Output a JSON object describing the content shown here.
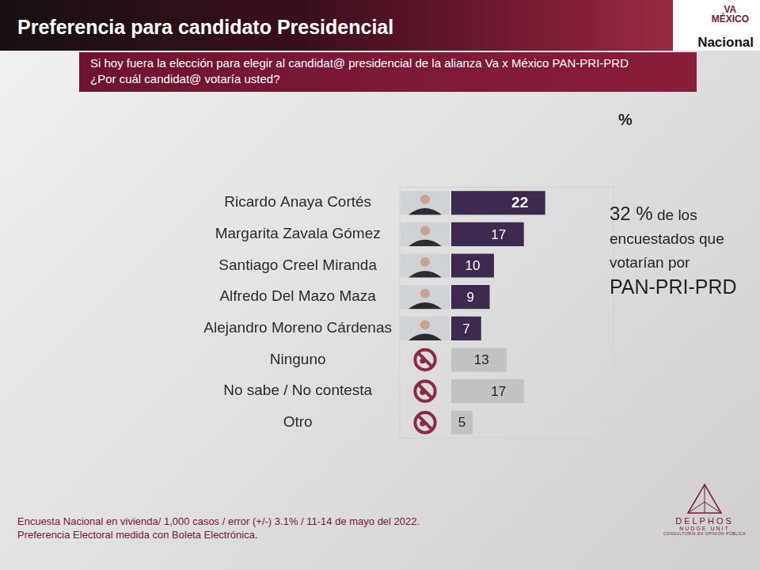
{
  "chart_data": {
    "type": "bar",
    "orientation": "horizontal",
    "title": "Preferencia para candidato Presidencial",
    "subtitle": [
      "Si hoy fuera la elección para elegir al candidat@ presidencial de la alianza Va x México PAN-PRI-PRD",
      "¿Por cuál candidat@  votaría usted?"
    ],
    "categories": [
      "Ricardo Anaya Cortés",
      "Margarita Zavala Gómez",
      "Santiago Creel Miranda",
      "Alfredo Del Mazo Maza",
      "Alejandro Moreno Cárdenas",
      "Ninguno",
      "No sabe / No contesta",
      "Otro"
    ],
    "values": [
      22,
      17,
      10,
      9,
      7,
      13,
      17,
      5
    ],
    "colors": [
      "#3e2a4e",
      "#3e2a4e",
      "#3e2a4e",
      "#3e2a4e",
      "#3e2a4e",
      "#c2c2c2",
      "#c2c2c2",
      "#c2c2c2"
    ],
    "xlim": [
      0,
      38
    ],
    "x_label": "%",
    "data_labels": true,
    "tick_labels": "y",
    "grid": false,
    "annotation": [
      "32 %",
      "de los encuestados que votarían por",
      "PAN-PRI-PRD"
    ],
    "notes": [
      "Encuesta Nacional en vivienda/ 1,000 casos / error (+/-) 3.1% / 11-14 de mayo del 2022.",
      "Preferencia Electoral medida con Boleta Electrónica."
    ]
  },
  "header": {
    "logo": [
      "VA",
      "MÉXICO"
    ],
    "scope": "Nacional"
  },
  "brand": [
    "DELPHOS",
    "NUDGE UNIT",
    "CONSULTORÍA EN OPINIÓN PÚBLICA"
  ]
}
